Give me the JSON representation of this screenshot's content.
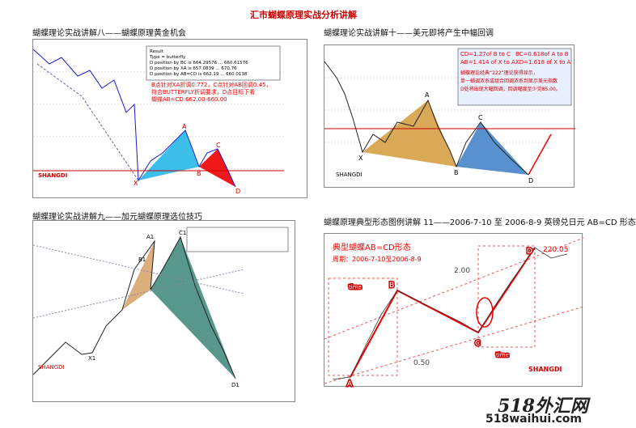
{
  "header": {
    "title": "汇市蝴蝶原理实战分析讲解"
  },
  "panels": [
    {
      "caption": "蝴蝶理论实战讲解八——蝴蝶原理黄金机会",
      "result": [
        "Result",
        "Type = butterfly",
        "D position by BC is 664.29576 ... 660.61576",
        "D position by XA is 657.0839 ... 670.76",
        "D position by AB=CD is 662.19 ... 660.0138"
      ],
      "note": [
        "B点针对XA折调0.772，C点针对AB回调0.45，",
        "符合BUTTERFLY折调要求，D点目标下看",
        "蝴蝶AB=CD:662.00-660.00"
      ],
      "points": [
        "X",
        "A",
        "B",
        "C",
        "D"
      ],
      "signature": "SHANGDI"
    },
    {
      "caption": "蝴蝶理论实战讲解十——美元即将产生中幅回调",
      "box": [
        "CD=1.27of B to C",
        "BC=0.618of A to B",
        "AB=1.414 of X to A",
        "XD=1.618 of X to A",
        "蝴蝶理论经典“222”理论获得显示，",
        "单一蝴调浓系或组合回调浓系到显示美元指数",
        "D处将出现大幅回调，回调幅度至少见85.00。"
      ],
      "points": [
        "X",
        "A",
        "B",
        "C",
        "D"
      ],
      "signature": "SHANGDI"
    },
    {
      "caption": "蝴蝶理论实战讲解九——加元蝴蝶原理选位技巧",
      "points": [
        "X1",
        "A1",
        "B1",
        "C1",
        "D1"
      ],
      "signature": "SHANGDI"
    },
    {
      "caption": "蝴蝶原理典型形态图例讲解 11——2006-7-10 至 2006-8-9 英镑兑日元 AB=CD 形态",
      "heading": "典型蝴蝶AB=CD形态",
      "period": "周期：2006-7-10至2006-8-9",
      "ratios": [
        "2.00",
        "0.50"
      ],
      "time": [
        "time",
        "time"
      ],
      "points": [
        "A",
        "B",
        "C",
        "D"
      ],
      "price": "220.05",
      "signature": "SHANGDI"
    }
  ],
  "watermark": [
    "518外汇网",
    "518waihui.com"
  ]
}
